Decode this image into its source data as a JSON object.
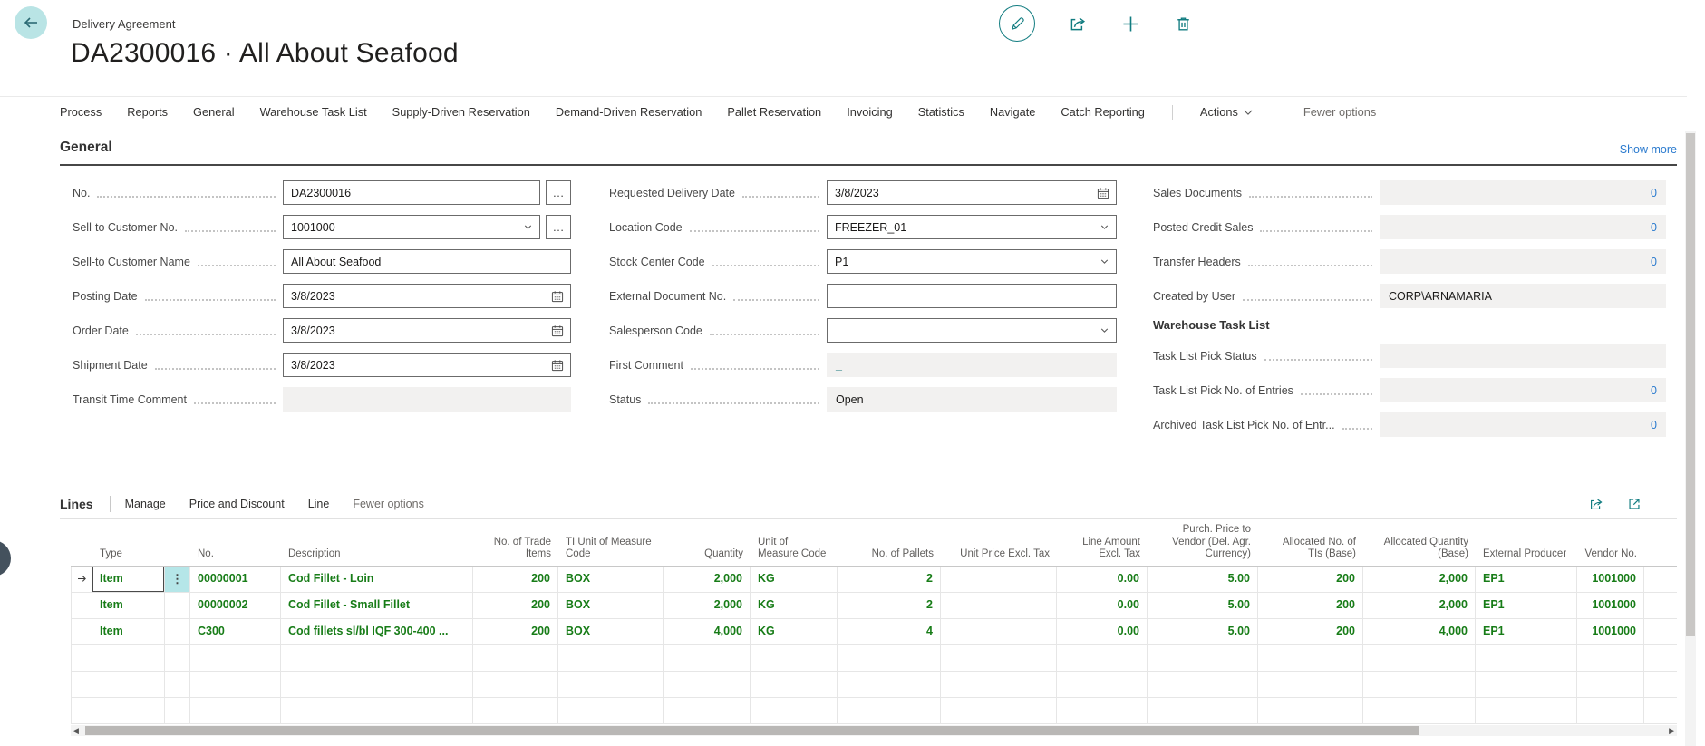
{
  "page": {
    "caption": "Delivery Agreement",
    "title": "DA2300016 · All About Seafood"
  },
  "top_actions": {
    "edit": "edit-pencil-icon",
    "share": "share-icon",
    "new": "add-plus-icon",
    "delete": "delete-trash-icon"
  },
  "ribbon": {
    "items": [
      "Process",
      "Reports",
      "General",
      "Warehouse Task List",
      "Supply-Driven Reservation",
      "Demand-Driven Reservation",
      "Pallet Reservation",
      "Invoicing",
      "Statistics",
      "Navigate",
      "Catch Reporting"
    ],
    "actions_label": "Actions",
    "fewer_options_label": "Fewer options"
  },
  "general": {
    "heading": "General",
    "show_more": "Show more",
    "subheading": "Warehouse Task List",
    "col1": [
      {
        "label": "No.",
        "value": "DA2300016",
        "control": "input",
        "trail": "ellipsis"
      },
      {
        "label": "Sell-to Customer No.",
        "value": "1001000",
        "control": "input",
        "icon": "chevron-down",
        "trail": "ellipsis"
      },
      {
        "label": "Sell-to Customer Name",
        "value": "All About Seafood",
        "control": "input"
      },
      {
        "label": "Posting Date",
        "value": "3/8/2023",
        "control": "input",
        "icon": "calendar"
      },
      {
        "label": "Order Date",
        "value": "3/8/2023",
        "control": "input",
        "icon": "calendar"
      },
      {
        "label": "Shipment Date",
        "value": "3/8/2023",
        "control": "input",
        "icon": "calendar"
      },
      {
        "label": "Transit Time Comment",
        "value": "",
        "control": "readonly"
      }
    ],
    "col2": [
      {
        "label": "Requested Delivery Date",
        "value": "3/8/2023",
        "control": "input",
        "icon": "calendar"
      },
      {
        "label": "Location Code",
        "value": "FREEZER_01",
        "control": "input",
        "icon": "chevron-down"
      },
      {
        "label": "Stock Center Code",
        "value": "P1",
        "control": "input",
        "icon": "chevron-down"
      },
      {
        "label": "External Document No.",
        "value": "",
        "control": "input"
      },
      {
        "label": "Salesperson Code",
        "value": "",
        "control": "input",
        "icon": "chevron-down"
      },
      {
        "label": "First Comment",
        "value": "_",
        "control": "readonly",
        "accent": true
      },
      {
        "label": "Status",
        "value": "Open",
        "control": "readonly"
      }
    ],
    "col3a": [
      {
        "label": "Sales Documents",
        "value": "0",
        "control": "readonly",
        "align": "right",
        "link": true
      },
      {
        "label": "Posted Credit Sales",
        "value": "0",
        "control": "readonly",
        "align": "right",
        "link": true
      },
      {
        "label": "Transfer Headers",
        "value": "0",
        "control": "readonly",
        "align": "right",
        "link": true
      },
      {
        "label": "Created by User",
        "value": "CORP\\ARNAMARIA",
        "control": "readonly"
      }
    ],
    "col3b": [
      {
        "label": "Task List Pick Status",
        "value": "",
        "control": "readonly"
      },
      {
        "label": "Task List Pick No. of Entries",
        "value": "0",
        "control": "readonly",
        "align": "right",
        "link": true
      },
      {
        "label": "Archived Task List Pick No. of Entr...",
        "value": "0",
        "control": "readonly",
        "align": "right",
        "link": true
      }
    ]
  },
  "lines": {
    "heading": "Lines",
    "menu": [
      "Manage",
      "Price and Discount",
      "Line"
    ],
    "fewer_options_label": "Fewer options",
    "table": {
      "headers": {
        "type": "Type",
        "no": "No.",
        "description": "Description",
        "trade_items": "No. of Trade Items",
        "ti_uom": "TI Unit of Measure Code",
        "quantity": "Quantity",
        "uom": "Unit of Measure Code",
        "pallets": "No. of Pallets",
        "unit_price": "Unit Price Excl. Tax",
        "line_amount": "Line Amount Excl. Tax",
        "purch_price": "Purch. Price to Vendor (Del. Agr. Currency)",
        "alloc_tis": "Allocated No. of TIs (Base)",
        "alloc_qty": "Allocated Quantity (Base)",
        "producer": "External Producer",
        "vendor": "Vendor No."
      },
      "rows": [
        {
          "type": "Item",
          "no": "00000001",
          "description": "Cod Fillet - Loin",
          "trade_items": "200",
          "ti_uom": "BOX",
          "quantity": "2,000",
          "uom": "KG",
          "pallets": "2",
          "unit_price": "",
          "line_amount": "0.00",
          "purch_price": "5.00",
          "alloc_tis": "200",
          "alloc_qty": "2,000",
          "producer": "EP1",
          "vendor": "1001000"
        },
        {
          "type": "Item",
          "no": "00000002",
          "description": "Cod Fillet - Small Fillet",
          "trade_items": "200",
          "ti_uom": "BOX",
          "quantity": "2,000",
          "uom": "KG",
          "pallets": "2",
          "unit_price": "",
          "line_amount": "0.00",
          "purch_price": "5.00",
          "alloc_tis": "200",
          "alloc_qty": "2,000",
          "producer": "EP1",
          "vendor": "1001000"
        },
        {
          "type": "Item",
          "no": "C300",
          "description": "Cod fillets sl/bl IQF 300-400 ...",
          "trade_items": "200",
          "ti_uom": "BOX",
          "quantity": "4,000",
          "uom": "KG",
          "pallets": "4",
          "unit_price": "",
          "line_amount": "0.00",
          "purch_price": "5.00",
          "alloc_tis": "200",
          "alloc_qty": "4,000",
          "producer": "EP1",
          "vendor": "1001000"
        }
      ]
    }
  },
  "colors": {
    "accent_teal": "#117c80",
    "link_blue": "#2a7ace",
    "line_green": "#177c17",
    "row_highlight": "#b5e6e8"
  }
}
